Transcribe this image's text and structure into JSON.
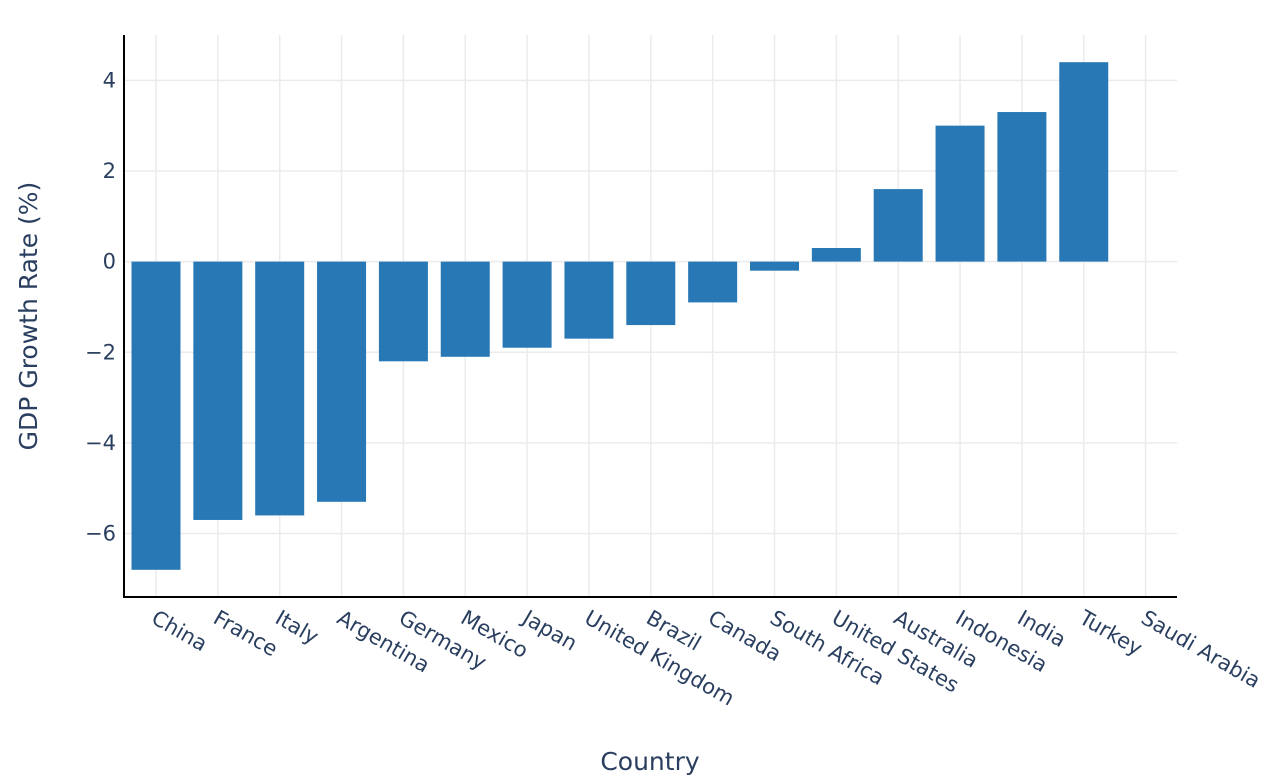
{
  "chart_data": {
    "type": "bar",
    "xlabel": "Country",
    "ylabel": "GDP Growth Rate (%)",
    "categories": [
      "China",
      "France",
      "Italy",
      "Argentina",
      "Germany",
      "Mexico",
      "Japan",
      "United Kingdom",
      "Brazil",
      "Canada",
      "South Africa",
      "United States",
      "Australia",
      "Indonesia",
      "India",
      "Turkey",
      "Saudi Arabia"
    ],
    "values": [
      -6.8,
      -5.7,
      -5.6,
      -5.3,
      -2.2,
      -2.1,
      -1.9,
      -1.7,
      -1.4,
      -0.9,
      -0.2,
      0.3,
      1.6,
      3.0,
      3.3,
      4.4,
      null
    ],
    "ylim": [
      -7.4,
      5.0
    ],
    "yticks": [
      -6,
      -4,
      -2,
      0,
      2,
      4
    ],
    "grid": true,
    "bar_color": "#2878b5",
    "text_color": "#2a3f5f"
  }
}
